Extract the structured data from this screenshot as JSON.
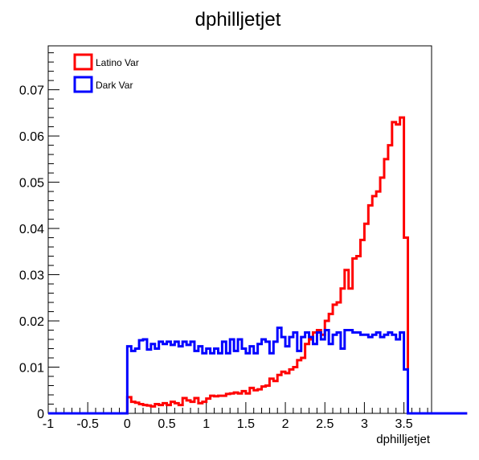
{
  "chart_data": {
    "type": "line",
    "title": "dphilljetjet",
    "xlabel": "dphilljetjet",
    "ylabel": "",
    "xlim": [
      -1,
      3.85
    ],
    "ylim": [
      0,
      0.0795
    ],
    "x_ticks": [
      "-1",
      "-0.5",
      "0",
      "0.5",
      "1",
      "1.5",
      "2",
      "2.5",
      "3",
      "3.5"
    ],
    "y_ticks": [
      "0",
      "0.01",
      "0.02",
      "0.03",
      "0.04",
      "0.05",
      "0.06",
      "0.07"
    ],
    "bin_width": 0.05,
    "x_start": -1.0,
    "legend_position": "top-left",
    "grid": false,
    "series": [
      {
        "name": "Latino Var",
        "color": "#ff0000",
        "values": [
          0,
          0,
          0,
          0,
          0,
          0,
          0,
          0,
          0,
          0,
          0,
          0,
          0,
          0,
          0,
          0,
          0,
          0,
          0,
          0,
          0.0035,
          0.0025,
          0.0023,
          0.002,
          0.0018,
          0.0017,
          0.0015,
          0.002,
          0.0018,
          0.0022,
          0.0018,
          0.0025,
          0.0022,
          0.0018,
          0.0033,
          0.0028,
          0.0025,
          0.0033,
          0.0022,
          0.0025,
          0.0032,
          0.0038,
          0.0037,
          0.0038,
          0.0038,
          0.0042,
          0.0043,
          0.0045,
          0.0043,
          0.0048,
          0.0043,
          0.0055,
          0.005,
          0.0052,
          0.0058,
          0.006,
          0.0075,
          0.007,
          0.0083,
          0.009,
          0.0087,
          0.0095,
          0.01,
          0.0115,
          0.012,
          0.015,
          0.016,
          0.0175,
          0.018,
          0.017,
          0.02,
          0.0215,
          0.0235,
          0.024,
          0.027,
          0.031,
          0.027,
          0.0335,
          0.034,
          0.0375,
          0.041,
          0.045,
          0.047,
          0.048,
          0.051,
          0.055,
          0.058,
          0.063,
          0.0625,
          0.064,
          0.038,
          0,
          0,
          0,
          0,
          0,
          0,
          0,
          0,
          0,
          0,
          0,
          0,
          0,
          0,
          0,
          0
        ]
      },
      {
        "name": "Dark Var",
        "color": "#0000ff",
        "values": [
          0,
          0,
          0,
          0,
          0,
          0,
          0,
          0,
          0,
          0,
          0,
          0,
          0,
          0,
          0,
          0,
          0,
          0,
          0,
          0,
          0.0145,
          0.0135,
          0.014,
          0.0158,
          0.016,
          0.0138,
          0.015,
          0.014,
          0.0155,
          0.015,
          0.0155,
          0.0148,
          0.0155,
          0.0145,
          0.0155,
          0.0148,
          0.0155,
          0.0135,
          0.0145,
          0.013,
          0.014,
          0.013,
          0.014,
          0.013,
          0.0155,
          0.013,
          0.016,
          0.0135,
          0.016,
          0.014,
          0.013,
          0.0145,
          0.013,
          0.015,
          0.016,
          0.0155,
          0.013,
          0.0155,
          0.0185,
          0.0165,
          0.0145,
          0.0165,
          0.0175,
          0.0135,
          0.0165,
          0.0175,
          0.0165,
          0.015,
          0.0175,
          0.016,
          0.018,
          0.015,
          0.017,
          0.0175,
          0.014,
          0.018,
          0.018,
          0.0175,
          0.0175,
          0.017,
          0.017,
          0.0165,
          0.017,
          0.0175,
          0.0165,
          0.017,
          0.0175,
          0.017,
          0.016,
          0.0175,
          0.0095,
          0,
          0,
          0,
          0,
          0,
          0,
          0,
          0,
          0,
          0,
          0,
          0,
          0,
          0,
          0,
          0
        ]
      }
    ]
  }
}
